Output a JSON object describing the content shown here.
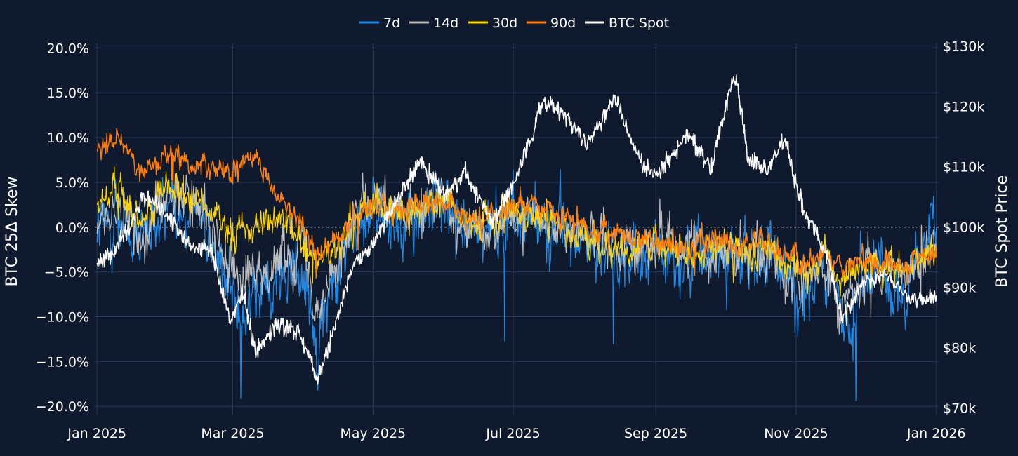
{
  "chart_data": {
    "type": "line",
    "title": "",
    "legend": {
      "placement": "top-center",
      "entries": [
        {
          "name": "7d",
          "color": "#1e88e5"
        },
        {
          "name": "14d",
          "color": "#bdbdbd"
        },
        {
          "name": "30d",
          "color": "#ffd600"
        },
        {
          "name": "90d",
          "color": "#ff7f0e"
        },
        {
          "name": "BTC Spot",
          "color": "#ffffff"
        }
      ]
    },
    "x_axis": {
      "range": [
        "2024-12-31",
        "2026-01-02"
      ],
      "ticks": [
        {
          "date": "2025-01-01",
          "label": "Jan 2025"
        },
        {
          "date": "2025-03-01",
          "label": "Mar 2025"
        },
        {
          "date": "2025-05-01",
          "label": "May 2025"
        },
        {
          "date": "2025-07-01",
          "label": "Jul 2025"
        },
        {
          "date": "2025-09-01",
          "label": "Sep 2025"
        },
        {
          "date": "2025-11-01",
          "label": "Nov 2025"
        },
        {
          "date": "2026-01-01",
          "label": "Jan 2026"
        }
      ]
    },
    "y_left": {
      "label": "BTC 25Δ Skew",
      "unit": "%",
      "range": [
        -21,
        20.5
      ],
      "ticks": [
        {
          "value": 20,
          "label": "20.0%"
        },
        {
          "value": 15,
          "label": "15.0%"
        },
        {
          "value": 10,
          "label": "10.0%"
        },
        {
          "value": 5,
          "label": "5.0%"
        },
        {
          "value": 0,
          "label": "0.0%"
        },
        {
          "value": -5,
          "label": "−5.0%"
        },
        {
          "value": -10,
          "label": "−10.0%"
        },
        {
          "value": -15,
          "label": "−15.0%"
        },
        {
          "value": -20,
          "label": "−20.0%"
        }
      ]
    },
    "y_right": {
      "label": "BTC Spot Price",
      "unit": "USD",
      "range": [
        68800,
        130400
      ],
      "ticks": [
        {
          "value": 130000,
          "label": "$130k"
        },
        {
          "value": 120000,
          "label": "$120k"
        },
        {
          "value": 110000,
          "label": "$110k"
        },
        {
          "value": 100000,
          "label": "$100k"
        },
        {
          "value": 90000,
          "label": "$90k"
        },
        {
          "value": 80000,
          "label": "$80k"
        },
        {
          "value": 70000,
          "label": "$70k"
        }
      ]
    },
    "grid": true,
    "zero_line": true,
    "skew_series_keypoints": {
      "dates": [
        "2025-01-01",
        "2025-01-10",
        "2025-01-20",
        "2025-02-01",
        "2025-02-15",
        "2025-03-01",
        "2025-03-10",
        "2025-03-20",
        "2025-04-01",
        "2025-04-07",
        "2025-04-20",
        "2025-05-01",
        "2025-05-15",
        "2025-06-01",
        "2025-06-15",
        "2025-07-01",
        "2025-07-15",
        "2025-08-01",
        "2025-08-15",
        "2025-09-01",
        "2025-09-15",
        "2025-10-01",
        "2025-10-10",
        "2025-10-20",
        "2025-11-01",
        "2025-11-15",
        "2025-11-22",
        "2025-12-01",
        "2025-12-15",
        "2026-01-01"
      ],
      "series": [
        {
          "name": "7d",
          "values": [
            0.0,
            1.0,
            -3.0,
            3.0,
            2.0,
            -8.0,
            -9.0,
            -6.0,
            -4.0,
            -13.0,
            -1.0,
            2.0,
            0.0,
            2.5,
            -1.5,
            1.0,
            0.0,
            -1.5,
            -4.0,
            -2.0,
            -3.0,
            -2.5,
            -4.0,
            -3.5,
            -7.0,
            -5.5,
            -11.0,
            -5.0,
            -7.0,
            -1.0
          ]
        },
        {
          "name": "14d",
          "values": [
            0.0,
            2.0,
            -1.0,
            4.0,
            3.0,
            -5.0,
            -6.0,
            -3.0,
            -2.0,
            -9.0,
            0.0,
            3.0,
            1.0,
            3.0,
            -0.5,
            1.5,
            0.5,
            -1.0,
            -3.0,
            -1.5,
            -2.5,
            -2.0,
            -3.5,
            -3.0,
            -6.0,
            -5.0,
            -9.0,
            -4.5,
            -5.5,
            -1.5
          ]
        },
        {
          "name": "30d",
          "values": [
            3.0,
            4.0,
            1.0,
            5.0,
            3.0,
            -1.0,
            0.0,
            1.0,
            -2.0,
            -5.0,
            0.0,
            3.0,
            1.5,
            3.0,
            0.0,
            2.0,
            1.0,
            -1.0,
            -2.5,
            -2.0,
            -3.0,
            -2.0,
            -3.0,
            -3.0,
            -4.5,
            -4.0,
            -6.0,
            -4.0,
            -5.0,
            -2.5
          ]
        },
        {
          "name": "90d",
          "values": [
            9.0,
            10.0,
            6.0,
            8.0,
            7.0,
            6.0,
            8.0,
            3.0,
            0.0,
            -3.0,
            0.0,
            3.0,
            2.0,
            3.0,
            0.5,
            2.0,
            2.5,
            0.0,
            -1.0,
            -1.5,
            -2.0,
            -1.5,
            -2.0,
            -2.0,
            -3.5,
            -3.0,
            -5.0,
            -4.0,
            -4.5,
            -3.0
          ]
        }
      ]
    },
    "btc_spot": {
      "dates": [
        "2025-01-01",
        "2025-01-08",
        "2025-01-15",
        "2025-01-21",
        "2025-01-31",
        "2025-02-10",
        "2025-02-20",
        "2025-02-28",
        "2025-03-05",
        "2025-03-11",
        "2025-03-20",
        "2025-03-30",
        "2025-04-07",
        "2025-04-15",
        "2025-04-22",
        "2025-05-01",
        "2025-05-10",
        "2025-05-22",
        "2025-06-01",
        "2025-06-10",
        "2025-06-22",
        "2025-07-01",
        "2025-07-10",
        "2025-07-14",
        "2025-07-25",
        "2025-08-02",
        "2025-08-14",
        "2025-08-25",
        "2025-09-01",
        "2025-09-15",
        "2025-09-25",
        "2025-10-03",
        "2025-10-06",
        "2025-10-11",
        "2025-10-20",
        "2025-10-27",
        "2025-11-05",
        "2025-11-14",
        "2025-11-21",
        "2025-12-01",
        "2025-12-10",
        "2025-12-20",
        "2026-01-01"
      ],
      "values": [
        93500,
        96000,
        100000,
        105500,
        102000,
        97000,
        96000,
        84000,
        90000,
        79000,
        84000,
        82500,
        75000,
        84000,
        93500,
        97000,
        104000,
        111000,
        105000,
        109000,
        100500,
        107000,
        116000,
        121000,
        118000,
        113500,
        121500,
        111000,
        108500,
        115500,
        109500,
        122500,
        125000,
        111000,
        109500,
        114500,
        102000,
        96000,
        84500,
        91000,
        92000,
        88000,
        88500
      ]
    }
  }
}
